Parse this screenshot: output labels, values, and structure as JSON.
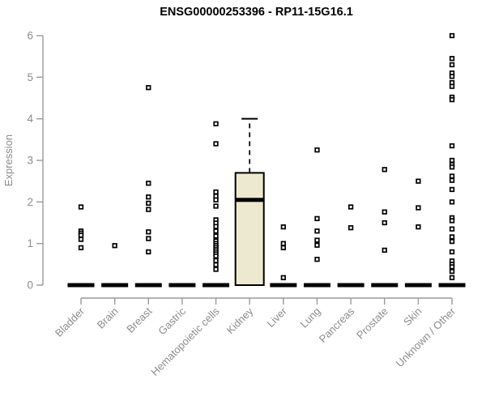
{
  "title": "ENSG00000253396 - RP11-15G16.1",
  "chart_data": {
    "type": "boxplot",
    "title": "ENSG00000253396 - RP11-15G16.1",
    "ylabel": "Expression",
    "ylim": [
      0,
      6
    ],
    "yticks": [
      0,
      1,
      2,
      3,
      4,
      5,
      6
    ],
    "grid": false,
    "categories": [
      "Bladder",
      "Brain",
      "Breast",
      "Gastric",
      "Hematopoietic cells",
      "Kidney",
      "Liver",
      "Lung",
      "Pancreas",
      "Prostate",
      "Skin",
      "Unknown / Other"
    ],
    "groups": [
      {
        "name": "Bladder",
        "median": 0,
        "points": [
          1.88,
          1.3,
          1.25,
          1.2,
          1.1,
          0.9
        ]
      },
      {
        "name": "Brain",
        "median": 0,
        "points": [
          0.95
        ]
      },
      {
        "name": "Breast",
        "median": 0,
        "points": [
          4.75,
          2.45,
          2.12,
          1.97,
          1.82,
          1.28,
          1.12,
          0.8
        ]
      },
      {
        "name": "Gastric",
        "median": 0,
        "points": []
      },
      {
        "name": "Hematopoietic cells",
        "median": 0,
        "points": [
          3.88,
          3.4,
          2.24,
          2.14,
          2.05,
          1.9,
          1.57,
          1.49,
          1.41,
          1.3,
          1.18,
          1.06,
          1.0,
          0.95,
          0.9,
          0.85,
          0.8,
          0.75,
          0.7,
          0.59,
          0.49,
          0.38
        ]
      },
      {
        "name": "Kidney",
        "box": {
          "whisker_low": 0,
          "q1": 0,
          "median": 2.05,
          "q3": 2.7,
          "whisker_high": 4.0
        },
        "points": []
      },
      {
        "name": "Liver",
        "median": 0,
        "points": [
          1.4,
          1.0,
          0.9,
          0.18
        ]
      },
      {
        "name": "Lung",
        "median": 0,
        "points": [
          3.25,
          1.6,
          1.3,
          1.08,
          0.96,
          0.62
        ]
      },
      {
        "name": "Pancreas",
        "median": 0,
        "points": [
          1.88,
          1.38
        ]
      },
      {
        "name": "Prostate",
        "median": 0,
        "points": [
          2.78,
          1.76,
          1.5,
          0.84
        ]
      },
      {
        "name": "Skin",
        "median": 0,
        "points": [
          2.5,
          1.86,
          1.4
        ]
      },
      {
        "name": "Unknown / Other",
        "median": 0,
        "points": [
          6.0,
          5.45,
          5.3,
          5.1,
          5.02,
          4.87,
          4.78,
          4.52,
          4.46,
          3.35,
          3.0,
          2.9,
          2.84,
          2.62,
          2.52,
          2.3,
          2.0,
          1.62,
          1.55,
          1.35,
          1.16,
          1.05,
          0.8,
          0.58,
          0.5,
          0.44,
          0.33,
          0.18
        ]
      }
    ],
    "colors": {
      "box_fill": "#EDE8D0",
      "box_stroke": "#000000",
      "median": "#000000",
      "point_stroke": "#000000",
      "point_fill": "#ffffff",
      "zero_bar": "#000000",
      "axis_line": "#9a9a9a",
      "axis_text": "#8c8c8c",
      "title": "#000000"
    },
    "legend": null
  }
}
